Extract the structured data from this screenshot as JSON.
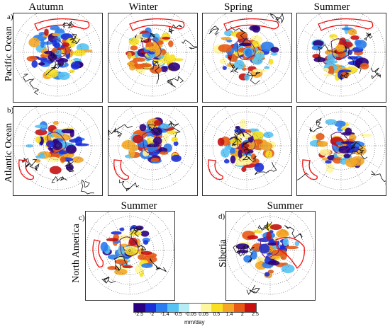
{
  "row_a": {
    "label": "a)",
    "side_label": "Pacific Ocean",
    "seasons": [
      "Autumn",
      "Winter",
      "Spring",
      "Summer"
    ]
  },
  "row_b": {
    "label": "b)",
    "side_label": "Atlantic Ocean"
  },
  "row_c": {
    "label": "c)",
    "season": "Summer",
    "side_label": "North America"
  },
  "row_d": {
    "label": "d)",
    "season": "Summer",
    "side_label": "Siberia"
  },
  "colorbar": {
    "ticks": [
      "-2.5",
      "-2",
      "-1.4",
      "-0.5",
      "-0.05",
      "0.05",
      "0.5",
      "1.4",
      "2",
      "2.5"
    ],
    "unit": "mm/day",
    "colors": [
      "#2a0080",
      "#1a2fd8",
      "#2a7df0",
      "#56c3f5",
      "#b8ecf5",
      "#ffffff",
      "#fff7a0",
      "#f8e020",
      "#f5a623",
      "#e85a14",
      "#c81010"
    ]
  }
}
